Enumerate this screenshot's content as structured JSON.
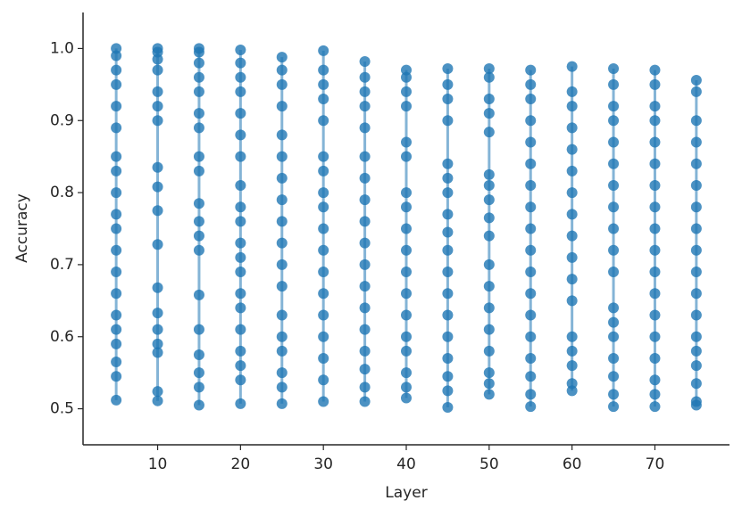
{
  "chart_data": {
    "type": "scatter",
    "xlabel": "Layer",
    "ylabel": "Accuracy",
    "color": "#1f77b4",
    "xlim": [
      1,
      79
    ],
    "ylim": [
      0.45,
      1.05
    ],
    "xticks": [
      10,
      20,
      30,
      40,
      50,
      60,
      70
    ],
    "yticks": [
      0.5,
      0.6,
      0.7,
      0.8,
      0.9,
      {
        "value": 1,
        "label": "1.0"
      }
    ],
    "series": [
      {
        "x": 5,
        "values": [
          1.0,
          0.99,
          0.97,
          0.95,
          0.92,
          0.89,
          0.85,
          0.83,
          0.8,
          0.77,
          0.75,
          0.72,
          0.69,
          0.66,
          0.63,
          0.61,
          0.59,
          0.565,
          0.545,
          0.512
        ]
      },
      {
        "x": 10,
        "values": [
          1.0,
          0.995,
          0.985,
          0.97,
          0.94,
          0.92,
          0.9,
          0.835,
          0.808,
          0.775,
          0.728,
          0.668,
          0.633,
          0.61,
          0.59,
          0.578,
          0.524,
          0.511
        ]
      },
      {
        "x": 15,
        "values": [
          1.0,
          0.995,
          0.98,
          0.96,
          0.94,
          0.91,
          0.89,
          0.85,
          0.83,
          0.785,
          0.76,
          0.74,
          0.72,
          0.658,
          0.61,
          0.575,
          0.55,
          0.53,
          0.505
        ]
      },
      {
        "x": 20,
        "values": [
          0.998,
          0.98,
          0.96,
          0.94,
          0.91,
          0.88,
          0.85,
          0.81,
          0.78,
          0.76,
          0.73,
          0.71,
          0.69,
          0.66,
          0.64,
          0.61,
          0.58,
          0.56,
          0.54,
          0.507
        ]
      },
      {
        "x": 25,
        "values": [
          0.988,
          0.97,
          0.95,
          0.92,
          0.88,
          0.85,
          0.82,
          0.79,
          0.76,
          0.73,
          0.7,
          0.67,
          0.63,
          0.6,
          0.58,
          0.55,
          0.53,
          0.507
        ]
      },
      {
        "x": 30,
        "values": [
          0.997,
          0.97,
          0.95,
          0.93,
          0.9,
          0.85,
          0.83,
          0.8,
          0.78,
          0.75,
          0.72,
          0.69,
          0.66,
          0.63,
          0.6,
          0.57,
          0.54,
          0.51
        ]
      },
      {
        "x": 35,
        "values": [
          0.982,
          0.96,
          0.94,
          0.92,
          0.89,
          0.85,
          0.82,
          0.79,
          0.76,
          0.73,
          0.7,
          0.67,
          0.64,
          0.61,
          0.58,
          0.555,
          0.53,
          0.51
        ]
      },
      {
        "x": 40,
        "values": [
          0.97,
          0.96,
          0.94,
          0.92,
          0.87,
          0.85,
          0.8,
          0.78,
          0.75,
          0.72,
          0.69,
          0.66,
          0.63,
          0.6,
          0.58,
          0.55,
          0.53,
          0.515
        ]
      },
      {
        "x": 45,
        "values": [
          0.972,
          0.95,
          0.93,
          0.9,
          0.84,
          0.82,
          0.8,
          0.77,
          0.745,
          0.72,
          0.69,
          0.66,
          0.63,
          0.6,
          0.57,
          0.545,
          0.525,
          0.502
        ]
      },
      {
        "x": 50,
        "values": [
          0.972,
          0.96,
          0.93,
          0.91,
          0.884,
          0.825,
          0.81,
          0.79,
          0.765,
          0.74,
          0.7,
          0.67,
          0.64,
          0.61,
          0.58,
          0.55,
          0.535,
          0.52
        ]
      },
      {
        "x": 55,
        "values": [
          0.97,
          0.95,
          0.93,
          0.9,
          0.87,
          0.84,
          0.81,
          0.78,
          0.75,
          0.72,
          0.69,
          0.66,
          0.63,
          0.6,
          0.57,
          0.545,
          0.52,
          0.503
        ]
      },
      {
        "x": 60,
        "values": [
          0.975,
          0.94,
          0.92,
          0.89,
          0.86,
          0.83,
          0.8,
          0.77,
          0.74,
          0.71,
          0.68,
          0.65,
          0.6,
          0.58,
          0.56,
          0.535,
          0.525
        ]
      },
      {
        "x": 65,
        "values": [
          0.972,
          0.95,
          0.92,
          0.9,
          0.87,
          0.84,
          0.81,
          0.78,
          0.75,
          0.72,
          0.69,
          0.64,
          0.62,
          0.6,
          0.57,
          0.545,
          0.52,
          0.503
        ]
      },
      {
        "x": 70,
        "values": [
          0.97,
          0.95,
          0.92,
          0.9,
          0.87,
          0.84,
          0.81,
          0.78,
          0.75,
          0.72,
          0.69,
          0.66,
          0.63,
          0.6,
          0.57,
          0.54,
          0.52,
          0.503
        ]
      },
      {
        "x": 75,
        "values": [
          0.956,
          0.94,
          0.9,
          0.87,
          0.84,
          0.81,
          0.78,
          0.75,
          0.72,
          0.69,
          0.66,
          0.63,
          0.6,
          0.58,
          0.56,
          0.535,
          0.51,
          0.505
        ]
      }
    ]
  }
}
